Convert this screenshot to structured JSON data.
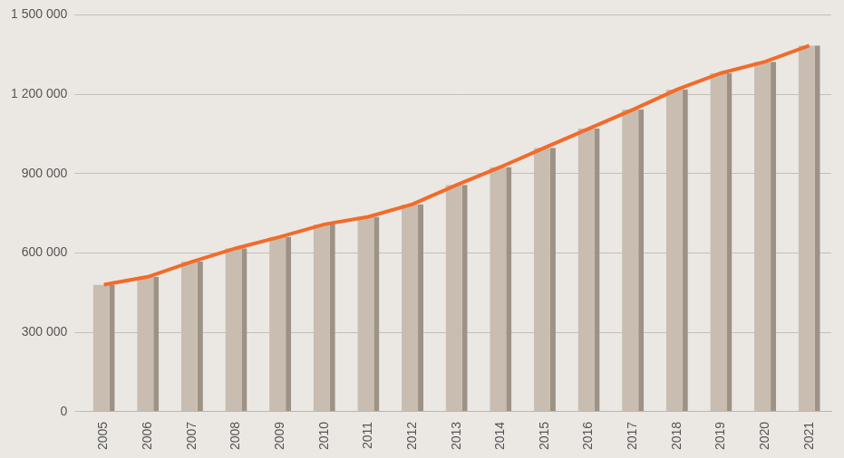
{
  "chart_data": {
    "type": "bar",
    "categories": [
      "2005",
      "2006",
      "2007",
      "2008",
      "2009",
      "2010",
      "2011",
      "2012",
      "2013",
      "2014",
      "2015",
      "2016",
      "2017",
      "2018",
      "2019",
      "2020",
      "2021"
    ],
    "series": [
      {
        "type": "bar",
        "color": "#c8bdb0",
        "values": [
          480000,
          510000,
          567000,
          618000,
          661000,
          708000,
          737000,
          784000,
          857000,
          925000,
          998000,
          1070000,
          1142000,
          1218000,
          1280000,
          1323000,
          1384000
        ]
      },
      {
        "type": "line",
        "color": "#f26b2a",
        "values": [
          480000,
          510000,
          567000,
          618000,
          661000,
          708000,
          737000,
          784000,
          857000,
          925000,
          998000,
          1070000,
          1142000,
          1218000,
          1280000,
          1323000,
          1384000
        ]
      }
    ],
    "ylim": [
      0,
      1500000
    ],
    "yticks": [
      {
        "value": 0,
        "label": "0"
      },
      {
        "value": 300000,
        "label": "300 000"
      },
      {
        "value": 600000,
        "label": "600 000"
      },
      {
        "value": 900000,
        "label": "900 000"
      },
      {
        "value": 1200000,
        "label": "1 200 000"
      },
      {
        "value": 1500000,
        "label": "1 500 000"
      }
    ],
    "grid": true
  }
}
